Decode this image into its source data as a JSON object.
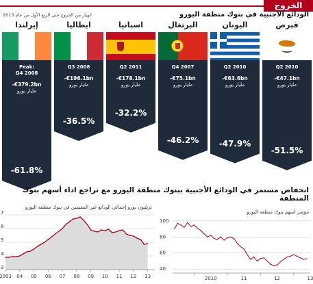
{
  "header": {
    "title": "الخروج السريع",
    "subtitle": "الودائع الأجنبية في بنوك منطقة اليورو",
    "note": "انهيار من الخروج حتى الربع الأول من عام 2013"
  },
  "countries": [
    {
      "name": "إيرلندا",
      "date": "Peak:\nQ4 2008",
      "amount": "-€379.2bn",
      "unit": "مليار يورو",
      "change": "-61.8%",
      "change_value": -61.8,
      "flag": "ireland-flag"
    },
    {
      "name": "ايطاليا",
      "date": "Q3 2008",
      "amount": "-€196.1bn",
      "unit": "مليار يورو",
      "change": "-36.5%",
      "change_value": -36.5,
      "flag": "italy-flag"
    },
    {
      "name": "اسبانيا",
      "date": "Q2 2011",
      "amount": "-€178.1bn",
      "unit": "مليار يورو",
      "change": "-32.2%",
      "change_value": -32.2,
      "flag": "spain-flag"
    },
    {
      "name": "البرتغال",
      "date": "Q4 2007",
      "amount": "-€75.1bn",
      "unit": "مليار يورو",
      "change": "-46.2%",
      "change_value": -46.2,
      "flag": "portugal-flag"
    },
    {
      "name": "اليونان",
      "date": "Q2 2010",
      "amount": "-€63.6bn",
      "unit": "مليار يورو",
      "change": "-47.9%",
      "change_value": -47.9,
      "flag": "greece-flag"
    },
    {
      "name": "قبرص",
      "date": "Q2 2010",
      "amount": "-€47.1bn",
      "unit": "مليار يورو",
      "change": "-51.5%",
      "change_value": -51.5,
      "flag": "cyprus-flag"
    }
  ],
  "section_title": "انخفاض مستمر في الودائع الأجنبية ببنوك منطقة اليورو مع تراجع اداء أسهم بنوك المنطقة",
  "colors": {
    "accent": "#b3001b",
    "banner": "#1f2b3b",
    "area": "#dcdcdc",
    "line": "#b3001b"
  },
  "chart_data": [
    {
      "type": "area",
      "title": "تريليون يورو إجمالي الودائع غير المقيمين في بنوك منطقة اليورو",
      "x_ticks": [
        "2003",
        "04",
        "05",
        "06",
        "07",
        "08",
        "09",
        "10",
        "11",
        "12",
        "13"
      ],
      "y_ticks": [
        "3",
        "4",
        "5",
        "6",
        "7"
      ],
      "ylim": [
        3,
        7
      ],
      "xlim": [
        2003,
        2013.5
      ],
      "x": [
        2003.0,
        2003.25,
        2003.5,
        2003.75,
        2004.0,
        2004.25,
        2004.5,
        2004.75,
        2005.0,
        2005.25,
        2005.5,
        2005.75,
        2006.0,
        2006.25,
        2006.5,
        2006.75,
        2007.0,
        2007.25,
        2007.5,
        2007.75,
        2008.0,
        2008.25,
        2008.5,
        2008.75,
        2009.0,
        2009.25,
        2009.5,
        2009.75,
        2010.0,
        2010.25,
        2010.5,
        2010.75,
        2011.0,
        2011.25,
        2011.5,
        2011.75,
        2012.0,
        2012.25,
        2012.5,
        2012.75,
        2013.0
      ],
      "values": [
        3.9,
        3.9,
        3.95,
        3.95,
        4.0,
        4.15,
        4.3,
        4.35,
        4.5,
        4.7,
        4.85,
        5.0,
        5.2,
        5.4,
        5.6,
        5.8,
        6.0,
        6.3,
        6.5,
        6.7,
        6.75,
        6.85,
        6.6,
        6.3,
        5.9,
        5.8,
        5.75,
        5.9,
        5.85,
        5.95,
        5.7,
        5.75,
        5.85,
        5.9,
        5.6,
        5.5,
        5.45,
        5.3,
        5.2,
        4.85,
        4.9
      ]
    },
    {
      "type": "line",
      "title": "مؤشر أسهم بنوك منطقة اليورو",
      "x_ticks": [
        "2010",
        "11",
        "12",
        "13"
      ],
      "y_ticks": [
        "100",
        "80",
        "60",
        "40"
      ],
      "ylim": [
        35,
        105
      ],
      "xlim": [
        2009.35,
        2013.5
      ],
      "x": [
        2009.4,
        2009.5,
        2009.6,
        2009.7,
        2009.8,
        2009.9,
        2010.0,
        2010.1,
        2010.2,
        2010.3,
        2010.4,
        2010.5,
        2010.6,
        2010.7,
        2010.8,
        2010.9,
        2011.0,
        2011.1,
        2011.2,
        2011.3,
        2011.4,
        2011.5,
        2011.6,
        2011.7,
        2011.8,
        2011.9,
        2012.0,
        2012.1,
        2012.2,
        2012.3,
        2012.4,
        2012.5,
        2012.6,
        2012.7,
        2012.8,
        2012.9,
        2013.0,
        2013.1,
        2013.2,
        2013.3,
        2013.4
      ],
      "values": [
        90,
        97,
        95,
        92,
        98,
        93,
        95,
        91,
        88,
        84,
        80,
        82,
        78,
        77,
        80,
        76,
        79,
        80,
        78,
        72,
        68,
        65,
        58,
        52,
        55,
        50,
        53,
        54,
        50,
        46,
        44,
        45,
        49,
        52,
        55,
        56,
        58,
        56,
        54,
        52,
        53
      ]
    }
  ]
}
